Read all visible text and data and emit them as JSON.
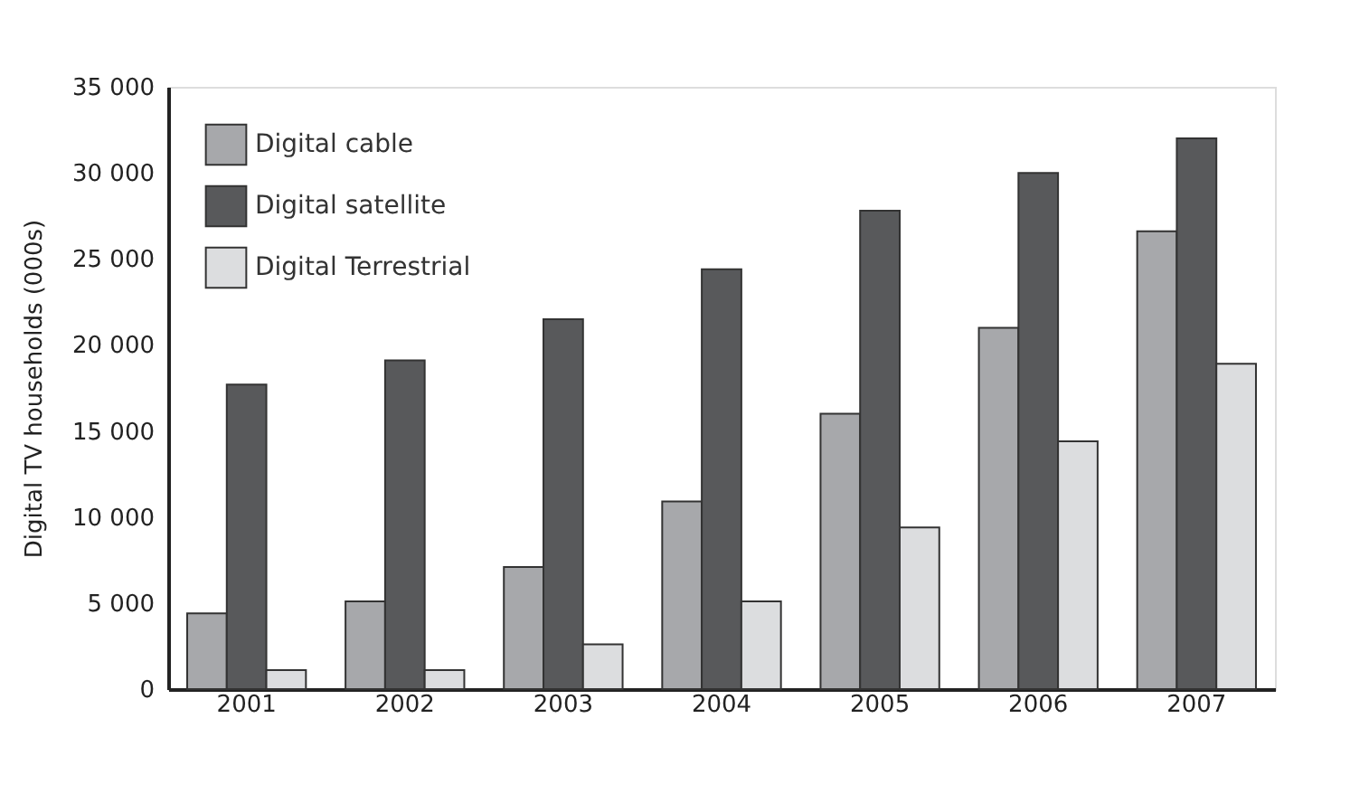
{
  "chart_data": {
    "type": "bar",
    "ylabel": "Digital TV households (000s)",
    "categories": [
      "2001",
      "2002",
      "2003",
      "2004",
      "2005",
      "2006",
      "2007"
    ],
    "series": [
      {
        "name": "Digital cable",
        "color": "#a7a8ab",
        "values": [
          4400,
          5100,
          7100,
          10900,
          16000,
          21000,
          26600
        ]
      },
      {
        "name": "Digital satellite",
        "color": "#58595b",
        "values": [
          17700,
          19100,
          21500,
          24400,
          27800,
          30000,
          32000
        ]
      },
      {
        "name": "Digital Terrestrial",
        "color": "#dcdddf",
        "values": [
          1100,
          1100,
          2600,
          5100,
          9400,
          14400,
          18900
        ]
      }
    ],
    "ylim": [
      0,
      35000
    ],
    "yticks": [
      {
        "value": 0,
        "label": "0"
      },
      {
        "value": 5000,
        "label": "5 000"
      },
      {
        "value": 10000,
        "label": "10 000"
      },
      {
        "value": 15000,
        "label": "15 000"
      },
      {
        "value": 20000,
        "label": "20 000"
      },
      {
        "value": 25000,
        "label": "25 000"
      },
      {
        "value": 30000,
        "label": "30 000"
      },
      {
        "value": 35000,
        "label": "35 000"
      }
    ],
    "grid": false,
    "legend": "top left"
  }
}
